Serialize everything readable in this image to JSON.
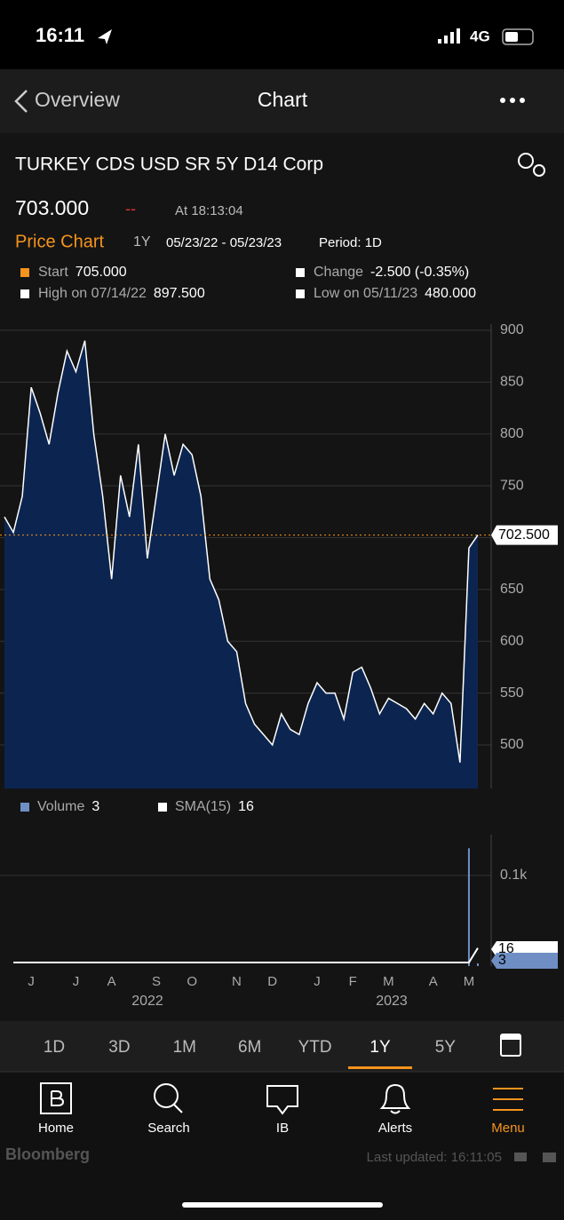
{
  "status_bar": {
    "time": "16:11",
    "network": "4G"
  },
  "nav": {
    "back": "Overview",
    "title": "Chart"
  },
  "security": {
    "name": "TURKEY CDS USD SR 5Y D14 Corp",
    "price": "703.000",
    "change": "--",
    "time": "At 18:13:04"
  },
  "chart_header": {
    "title": "Price Chart",
    "range": "1Y",
    "dates": "05/23/22 - 05/23/23",
    "period": "Period: 1D"
  },
  "stats": [
    {
      "label": "Start",
      "value": "705.000",
      "color": "#f7941d"
    },
    {
      "label": "Change",
      "value": "-2.500 (-0.35%)",
      "color": "#ffffff"
    },
    {
      "label": "High on 07/14/22",
      "value": "897.500",
      "color": "#ffffff"
    },
    {
      "label": "Low on 05/11/23",
      "value": "480.000",
      "color": "#ffffff"
    }
  ],
  "chart_data": [
    {
      "type": "area",
      "color": "#ffffff",
      "fill": "#0c2550",
      "values": [
        720,
        705,
        740,
        845,
        820,
        790,
        840,
        880,
        860,
        890,
        800,
        740,
        660,
        760,
        720,
        790,
        680,
        740,
        800,
        760,
        790,
        780,
        740,
        660,
        640,
        600,
        590,
        540,
        520,
        510,
        500,
        530,
        515,
        510,
        540,
        560,
        550,
        550,
        525,
        570,
        575,
        555,
        530,
        545,
        540,
        535,
        525,
        540,
        530,
        550,
        540,
        483,
        690,
        702.5
      ],
      "categories": [
        null,
        null,
        null,
        "J",
        null,
        null,
        null,
        null,
        "J",
        null,
        null,
        null,
        "A",
        null,
        null,
        null,
        null,
        "S",
        null,
        null,
        null,
        "O",
        null,
        null,
        null,
        null,
        "N",
        null,
        null,
        null,
        "D",
        null,
        null,
        null,
        null,
        "J",
        null,
        null,
        null,
        "F",
        null,
        null,
        null,
        "M",
        null,
        null,
        null,
        null,
        "A",
        null,
        null,
        null,
        "M",
        null
      ],
      "years": [
        "2022",
        "2023"
      ],
      "ylim": [
        458,
        906
      ],
      "yticks": [
        500,
        550,
        600,
        650,
        700,
        750,
        800,
        850,
        900
      ],
      "grid": true,
      "marker": {
        "value": 702.5,
        "label": "702.500",
        "color": "#f7941d"
      }
    },
    {
      "type": "bar",
      "ylim": [
        0,
        145
      ],
      "yticks": [
        {
          "value": 100,
          "label": "0.1k"
        }
      ],
      "grid": true,
      "series": [
        {
          "name": "Volume",
          "color": "#6f8fc4",
          "values": [
            0,
            0,
            0,
            0,
            0,
            0,
            0,
            0,
            0,
            0,
            0,
            0,
            0,
            0,
            0,
            0,
            0,
            0,
            0,
            0,
            0,
            0,
            0,
            0,
            0,
            0,
            0,
            0,
            0,
            0,
            0,
            0,
            0,
            0,
            0,
            0,
            0,
            0,
            0,
            0,
            0,
            0,
            0,
            0,
            0,
            0,
            0,
            0,
            0,
            0,
            0,
            0,
            130,
            3
          ]
        },
        {
          "name": "SMA(15)",
          "color": "#ffffff",
          "values": [
            0,
            0,
            0,
            0,
            0,
            0,
            0,
            0,
            0,
            0,
            0,
            0,
            0,
            0,
            0,
            0,
            0,
            0,
            0,
            0,
            0,
            0,
            0,
            0,
            0,
            0,
            0,
            0,
            0,
            0,
            0,
            0,
            0,
            0,
            0,
            0,
            0,
            0,
            0,
            0,
            0,
            0,
            0,
            0,
            0,
            0,
            0,
            0,
            0,
            0,
            0,
            0,
            0,
            16
          ]
        }
      ]
    }
  ],
  "time_buttons": [
    "1D",
    "3D",
    "1M",
    "6M",
    "YTD",
    "1Y",
    "5Y"
  ],
  "time_selected": 5,
  "tabs": [
    {
      "label": "Home"
    },
    {
      "label": "Search"
    },
    {
      "label": "IB"
    },
    {
      "label": "Alerts"
    },
    {
      "label": "Menu"
    }
  ],
  "tab_selected": 4,
  "footer": {
    "brand": "Bloomberg",
    "updated": "Last updated: 16:11:05"
  }
}
